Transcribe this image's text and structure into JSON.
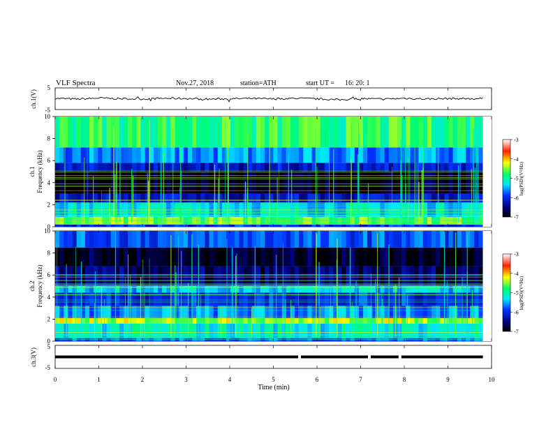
{
  "header": {
    "title": "VLF  Spectra",
    "date": "Nov.27, 2018",
    "station": "station=ATH",
    "start_label": "start  UT  =",
    "start_time": "16: 20: 1"
  },
  "chart_data": [
    {
      "type": "line",
      "panel": "ch1-waveform",
      "ylabel": "ch.1(V)",
      "ylim": [
        -5,
        5
      ],
      "yticks": [
        5,
        -5
      ],
      "xlim": [
        0,
        10
      ],
      "x": [
        0,
        0.5,
        1,
        1.5,
        2,
        2.5,
        3,
        3.5,
        4,
        4.5,
        5,
        5.5,
        6,
        6.5,
        7,
        7.5,
        8,
        8.5,
        9,
        9.5,
        9.8
      ],
      "values": [
        0.2,
        -0.2,
        0.3,
        0.0,
        -0.1,
        0.2,
        0.1,
        -0.2,
        0.0,
        0.1,
        -0.1,
        0.2,
        -0.1,
        -0.5,
        0.1,
        -0.2,
        0.2,
        -0.1,
        0.1,
        0.0,
        0.1
      ],
      "color": "#000000"
    },
    {
      "type": "heatmap",
      "panel": "ch1-spectrogram",
      "ylabel": "ch.1\nFrequency  (kHz)",
      "ylim": [
        0,
        10
      ],
      "yticks": [
        0,
        2,
        4,
        6,
        8,
        10
      ],
      "xlim": [
        0,
        9.8
      ],
      "colorbar": {
        "label": "log(PSD)(V²/Hz)",
        "range": [
          -7,
          -3
        ],
        "ticks": [
          "-3",
          "-4",
          "-5",
          "-6",
          "-7"
        ]
      },
      "bands": [
        {
          "f": [
            0,
            0.2
          ],
          "level": -6.0
        },
        {
          "f": [
            0.2,
            0.9
          ],
          "level": -4.6
        },
        {
          "f": [
            0.9,
            2.2
          ],
          "level": -5.3
        },
        {
          "f": [
            2.2,
            3.0
          ],
          "level": -6.2
        },
        {
          "f": [
            3.0,
            5.0
          ],
          "level": -6.9
        },
        {
          "f": [
            5.0,
            5.8
          ],
          "level": -6.2
        },
        {
          "f": [
            5.8,
            7.2
          ],
          "level": -5.6
        },
        {
          "f": [
            7.2,
            10.0
          ],
          "level": -4.8
        }
      ]
    },
    {
      "type": "heatmap",
      "panel": "ch2-spectrogram",
      "ylabel": "ch.2\nFrequency  (kHz)",
      "ylim": [
        0,
        10
      ],
      "yticks": [
        0,
        2,
        4,
        6,
        8,
        10
      ],
      "xlim": [
        0,
        9.8
      ],
      "colorbar": {
        "label": "log(PSD)(V²/Hz)",
        "range": [
          -7,
          -3
        ],
        "ticks": [
          "-3",
          "-4",
          "-5",
          "-6",
          "-7"
        ]
      },
      "bands": [
        {
          "f": [
            0,
            0.3
          ],
          "level": -5.8
        },
        {
          "f": [
            0.3,
            1.6
          ],
          "level": -5.2
        },
        {
          "f": [
            1.6,
            2.1
          ],
          "level": -4.4
        },
        {
          "f": [
            2.1,
            3.2
          ],
          "level": -5.6
        },
        {
          "f": [
            3.2,
            4.4
          ],
          "level": -6.0
        },
        {
          "f": [
            4.4,
            5.0
          ],
          "level": -5.4
        },
        {
          "f": [
            5.0,
            6.8
          ],
          "level": -6.6
        },
        {
          "f": [
            6.8,
            8.5
          ],
          "level": -6.8
        },
        {
          "f": [
            8.5,
            10.0
          ],
          "level": -5.8
        }
      ]
    },
    {
      "type": "line",
      "panel": "ch3-signal",
      "ylabel": "ch.3(V)",
      "ylim": [
        -5,
        5
      ],
      "yticks": [
        5,
        0,
        -5
      ],
      "xlim": [
        0,
        10
      ],
      "level": 0,
      "gaps": [
        5.6,
        7.2,
        7.9
      ],
      "color": "#000000"
    }
  ],
  "x_axis": {
    "label": "Time  (min)",
    "ticks": [
      "0",
      "1",
      "2",
      "3",
      "4",
      "5",
      "6",
      "7",
      "8",
      "9",
      "10"
    ]
  }
}
